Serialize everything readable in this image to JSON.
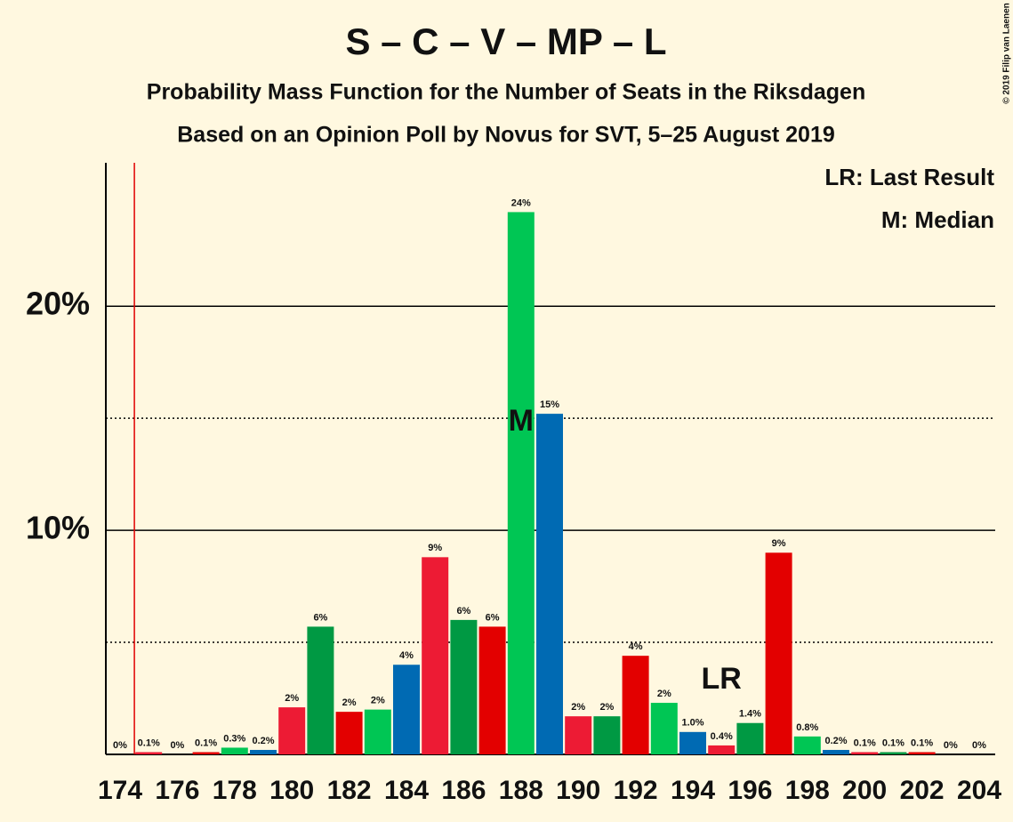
{
  "chart_data": {
    "type": "bar",
    "title": "S – C – V – MP – L",
    "subtitle": "Probability Mass Function for the Number of Seats in the Riksdagen",
    "subtitle2": "Based on an Opinion Poll by Novus for SVT, 5–25 August 2019",
    "copyright": "© 2019 Filip van Laenen",
    "legend": [
      "LR: Last Result",
      "M: Median"
    ],
    "categories": [
      174,
      null,
      176,
      null,
      178,
      null,
      180,
      null,
      182,
      null,
      184,
      null,
      186,
      null,
      188,
      null,
      190,
      null,
      192,
      null,
      194,
      null,
      196,
      null,
      198,
      null,
      200,
      null,
      202,
      null,
      204
    ],
    "values": [
      0,
      0.1,
      0,
      0.1,
      0.3,
      0.2,
      2.1,
      5.7,
      1.9,
      2.0,
      4.0,
      8.8,
      6.0,
      5.7,
      24.2,
      15.2,
      1.7,
      1.7,
      4.4,
      2.3,
      1.0,
      0.4,
      1.4,
      9.0,
      0.8,
      0.2,
      0.1,
      0.1,
      0.1,
      0,
      0
    ],
    "value_labels": [
      "0%",
      "0.1%",
      "0%",
      "0.1%",
      "0.3%",
      "0.2%",
      "2%",
      "6%",
      "2%",
      "2%",
      "4%",
      "9%",
      "6%",
      "6%",
      "24%",
      "15%",
      "2%",
      "2%",
      "4%",
      "2%",
      "1.0%",
      "0.4%",
      "1.4%",
      "9%",
      "0.8%",
      "0.2%",
      "0.1%",
      "0.1%",
      "0.1%",
      "0%",
      "0%"
    ],
    "colors": [
      "#e30000",
      "#ed1b34",
      "#009943",
      "#e30000",
      "#00c654",
      "#006ab3",
      "#ed1b34",
      "#009943",
      "#e30000",
      "#00c654",
      "#006ab3",
      "#ed1b34",
      "#009943",
      "#e30000",
      "#00c654",
      "#006ab3",
      "#ed1b34",
      "#009943",
      "#e30000",
      "#00c654",
      "#006ab3",
      "#ed1b34",
      "#009943",
      "#e30000",
      "#00c654",
      "#006ab3",
      "#ed1b34",
      "#009943",
      "#e30000",
      "#00c654",
      "#006ab3"
    ],
    "ylim": [
      0,
      26.4
    ],
    "yticks": [
      {
        "value": 10,
        "label": "10%"
      },
      {
        "value": 20,
        "label": "20%"
      }
    ],
    "minor_yticks": [
      5,
      15
    ],
    "majority": 175,
    "median": 188,
    "median_label": "M",
    "last_result": 195,
    "last_result_label": "LR"
  }
}
